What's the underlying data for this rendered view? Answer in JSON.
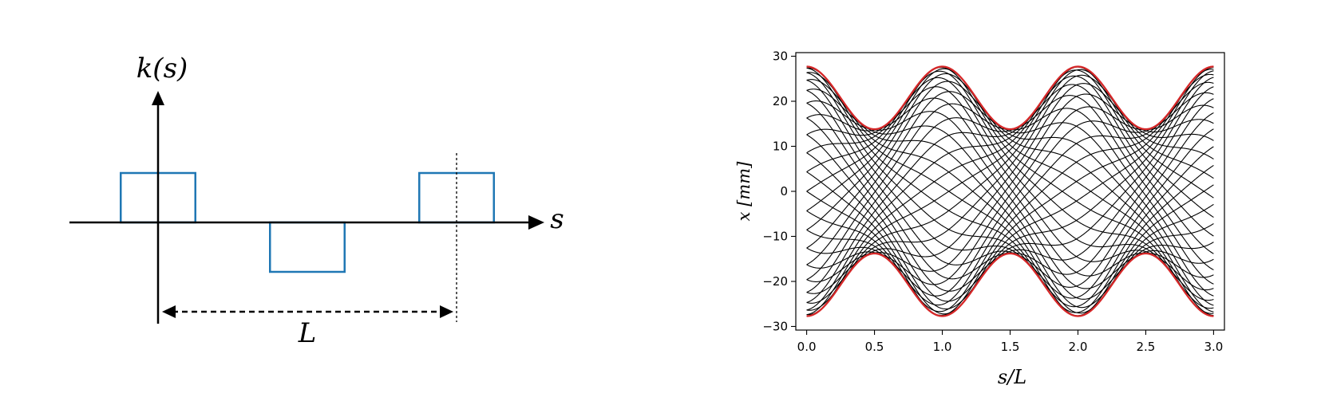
{
  "chart_data": [
    {
      "type": "diagram",
      "ylabel": "k(s)",
      "xlabel": "s",
      "period_label": "L",
      "magnet_blocks": [
        {
          "s_start": -0.125,
          "s_end": 0.125,
          "k": 1
        },
        {
          "s_start": 0.375,
          "s_end": 0.625,
          "k": -1
        },
        {
          "s_start": 0.875,
          "s_end": 1.125,
          "k": 1
        }
      ],
      "period_marker_s": 1.0,
      "block_color": "#1f77b4"
    },
    {
      "type": "line",
      "xlabel": "s/L",
      "ylabel": "x  [mm]",
      "xlim": [
        -0.08,
        3.08
      ],
      "ylim": [
        -30.8,
        30.8
      ],
      "xticks": [
        0.0,
        0.5,
        1.0,
        1.5,
        2.0,
        2.5,
        3.0
      ],
      "xtick_labels": [
        "0.0",
        "0.5",
        "1.0",
        "1.5",
        "2.0",
        "2.5",
        "3.0"
      ],
      "yticks": [
        -30,
        -20,
        -10,
        0,
        10,
        20,
        30
      ],
      "ytick_labels": [
        "−30",
        "−20",
        "−10",
        "0",
        "10",
        "20",
        "30"
      ],
      "trajectories": {
        "count": 40,
        "color": "#000000",
        "envelope_max_mm": 27.7,
        "envelope_min_mm": 13.8,
        "envelope_period": 1.0,
        "phase_advance_per_period_deg": 88
      },
      "envelope": {
        "color": "#d62728",
        "values_at_key_points": [
          {
            "s": 0.0,
            "x": 27.7
          },
          {
            "s": 0.5,
            "x": 13.8
          },
          {
            "s": 1.0,
            "x": 27.7
          },
          {
            "s": 1.5,
            "x": 13.8
          },
          {
            "s": 2.0,
            "x": 27.7
          },
          {
            "s": 2.5,
            "x": 13.8
          },
          {
            "s": 3.0,
            "x": 27.7
          }
        ]
      }
    }
  ]
}
